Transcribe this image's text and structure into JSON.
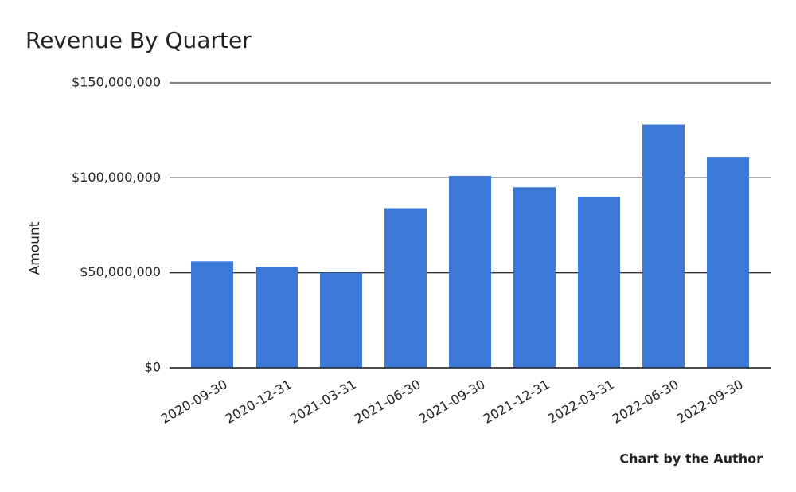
{
  "chart_data": {
    "type": "bar",
    "title": "Revenue By Quarter",
    "y_label": "Amount",
    "footnote": "Chart by the Author",
    "categories": [
      "2020-09-30",
      "2020-12-31",
      "2021-03-31",
      "2021-06-30",
      "2021-09-30",
      "2021-12-31",
      "2022-03-31",
      "2022-06-30",
      "2022-09-30"
    ],
    "values": [
      56000000,
      53000000,
      50000000,
      84000000,
      101000000,
      95000000,
      90000000,
      128000000,
      111000000
    ],
    "color": "#3c78d8",
    "ylim": [
      0,
      150000000
    ],
    "yticks": [
      {
        "value": 0,
        "label": "$0"
      },
      {
        "value": 50000000,
        "label": "$50,000,000"
      },
      {
        "value": 100000000,
        "label": "$100,000,000"
      },
      {
        "value": 150000000,
        "label": "$150,000,000"
      }
    ],
    "grid": true
  }
}
